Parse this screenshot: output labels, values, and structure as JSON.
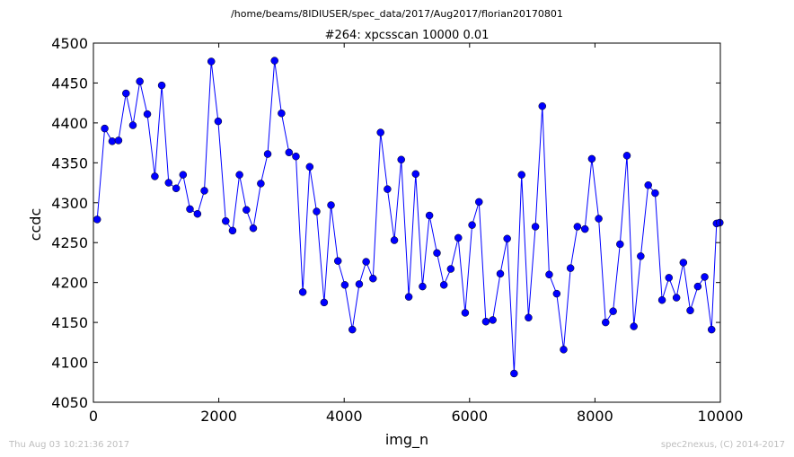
{
  "chart_data": {
    "type": "line",
    "path_title": "/home/beams/8IDIUSER/spec_data/2017/Aug2017/florian20170801",
    "title": "#264: xpcsscan 10000 0.01",
    "xlabel": "img_n",
    "ylabel": "ccdc",
    "xlim": [
      0,
      10000
    ],
    "ylim": [
      4050,
      4500
    ],
    "xticks": [
      0,
      2000,
      4000,
      6000,
      8000,
      10000
    ],
    "yticks": [
      4050,
      4100,
      4150,
      4200,
      4250,
      4300,
      4350,
      4400,
      4450,
      4500
    ],
    "grid": false,
    "legend": "none",
    "color": "#0000ff",
    "series": [
      {
        "x": [
          60,
          180,
          300,
          400,
          520,
          630,
          740,
          860,
          980,
          1090,
          1200,
          1320,
          1430,
          1540,
          1660,
          1770,
          1880,
          1990,
          2110,
          2220,
          2330,
          2440,
          2550,
          2670,
          2780,
          2890,
          3000,
          3120,
          3230,
          3340,
          3450,
          3560,
          3680,
          3790,
          3900,
          4010,
          4130,
          4240,
          4350,
          4460,
          4580,
          4690,
          4800,
          4910,
          5030,
          5140,
          5250,
          5360,
          5480,
          5590,
          5700,
          5820,
          5930,
          6040,
          6150,
          6260,
          6370,
          6490,
          6600,
          6710,
          6830,
          6940,
          7050,
          7160,
          7270,
          7390,
          7500,
          7610,
          7720,
          7840,
          7950,
          8060,
          8170,
          8290,
          8400,
          8510,
          8620,
          8730,
          8850,
          8960,
          9070,
          9180,
          9300,
          9410,
          9520,
          9640,
          9750,
          9860,
          9940,
          9990
        ],
        "y": [
          4279,
          4393,
          4377,
          4378,
          4437,
          4397,
          4452,
          4411,
          4333,
          4447,
          4325,
          4318,
          4335,
          4292,
          4286,
          4315,
          4477,
          4402,
          4277,
          4265,
          4335,
          4291,
          4268,
          4324,
          4361,
          4478,
          4412,
          4363,
          4358,
          4188,
          4345,
          4289,
          4175,
          4297,
          4227,
          4197,
          4141,
          4198,
          4226,
          4205,
          4388,
          4317,
          4253,
          4354,
          4182,
          4336,
          4195,
          4284,
          4237,
          4197,
          4217,
          4256,
          4162,
          4272,
          4301,
          4151,
          4153,
          4211,
          4255,
          4086,
          4335,
          4156,
          4270,
          4421,
          4210,
          4186,
          4116,
          4218,
          4270,
          4267,
          4355,
          4280,
          4150,
          4164,
          4248,
          4359,
          4145,
          4233,
          4322,
          4312,
          4178,
          4206,
          4181,
          4225,
          4165,
          4195,
          4207,
          4141,
          4274,
          4275
        ]
      }
    ]
  },
  "footer": {
    "timestamp": "Thu Aug 03 10:21:36 2017",
    "credit": "spec2nexus, (C) 2014-2017"
  }
}
